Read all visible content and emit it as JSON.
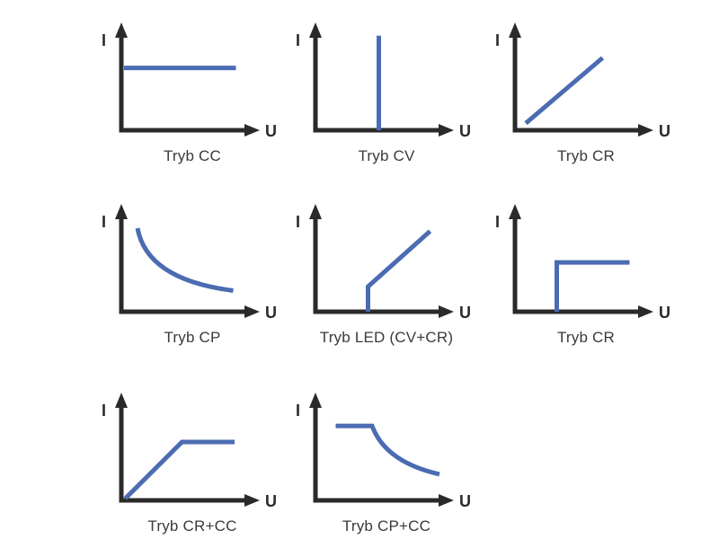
{
  "figure": {
    "axis_labels": {
      "y": "I",
      "x": "U"
    },
    "colors": {
      "background": "#ffffff",
      "axis": "#2c2a29",
      "curve": "#4b6cb2",
      "caption": "#3a3a3a"
    },
    "panels": [
      {
        "label": "Tryb CC",
        "segments": [
          {
            "type": "line",
            "points": [
              [
                0.02,
                0.62
              ],
              [
                0.85,
                0.62
              ]
            ]
          }
        ]
      },
      {
        "label": "Tryb CV",
        "segments": [
          {
            "type": "line",
            "points": [
              [
                0.47,
                0.0
              ],
              [
                0.47,
                0.94
              ]
            ]
          }
        ]
      },
      {
        "label": "Tryb CR",
        "segments": [
          {
            "type": "line",
            "points": [
              [
                0.08,
                0.07
              ],
              [
                0.65,
                0.72
              ]
            ]
          }
        ]
      },
      {
        "label": "Tryb CP",
        "segments": [
          {
            "type": "quad",
            "points": [
              [
                0.12,
                0.83
              ],
              [
                0.19,
                0.32
              ],
              [
                0.83,
                0.21
              ]
            ]
          }
        ]
      },
      {
        "label": "Tryb LED (CV+CR)",
        "segments": [
          {
            "type": "line",
            "points": [
              [
                0.39,
                0.0
              ],
              [
                0.39,
                0.25
              ],
              [
                0.85,
                0.8
              ]
            ]
          }
        ]
      },
      {
        "label": "Tryb CR",
        "segments": [
          {
            "type": "line",
            "points": [
              [
                0.31,
                0.0
              ],
              [
                0.31,
                0.49
              ],
              [
                0.85,
                0.49
              ]
            ]
          }
        ]
      },
      {
        "label": "Tryb CR+CC",
        "segments": [
          {
            "type": "line",
            "points": [
              [
                0.03,
                0.02
              ],
              [
                0.45,
                0.58
              ],
              [
                0.84,
                0.58
              ]
            ]
          }
        ]
      },
      {
        "label": "Tryb CP+CC",
        "segments": [
          {
            "type": "line",
            "points": [
              [
                0.15,
                0.74
              ],
              [
                0.42,
                0.74
              ]
            ]
          },
          {
            "type": "quad",
            "points": [
              [
                0.42,
                0.74
              ],
              [
                0.52,
                0.38
              ],
              [
                0.92,
                0.26
              ]
            ]
          }
        ]
      }
    ]
  }
}
